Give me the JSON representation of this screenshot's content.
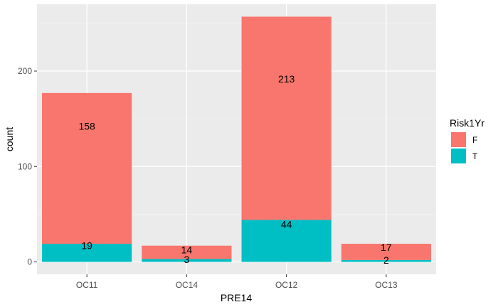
{
  "chart_data": {
    "type": "bar",
    "stacked": true,
    "categories": [
      "OC11",
      "OC14",
      "OC12",
      "OC13"
    ],
    "series": [
      {
        "name": "F",
        "values": [
          158,
          14,
          213,
          17
        ],
        "color": "#F8766D"
      },
      {
        "name": "T",
        "values": [
          19,
          3,
          44,
          2
        ],
        "color": "#00BFC4"
      }
    ],
    "xlabel": "PRE14",
    "ylabel": "count",
    "ylim": [
      -13,
      270
    ],
    "yticks": [
      0,
      100,
      200
    ],
    "grid": true,
    "legend": {
      "title": "Risk1Yr",
      "placement": "right"
    }
  }
}
